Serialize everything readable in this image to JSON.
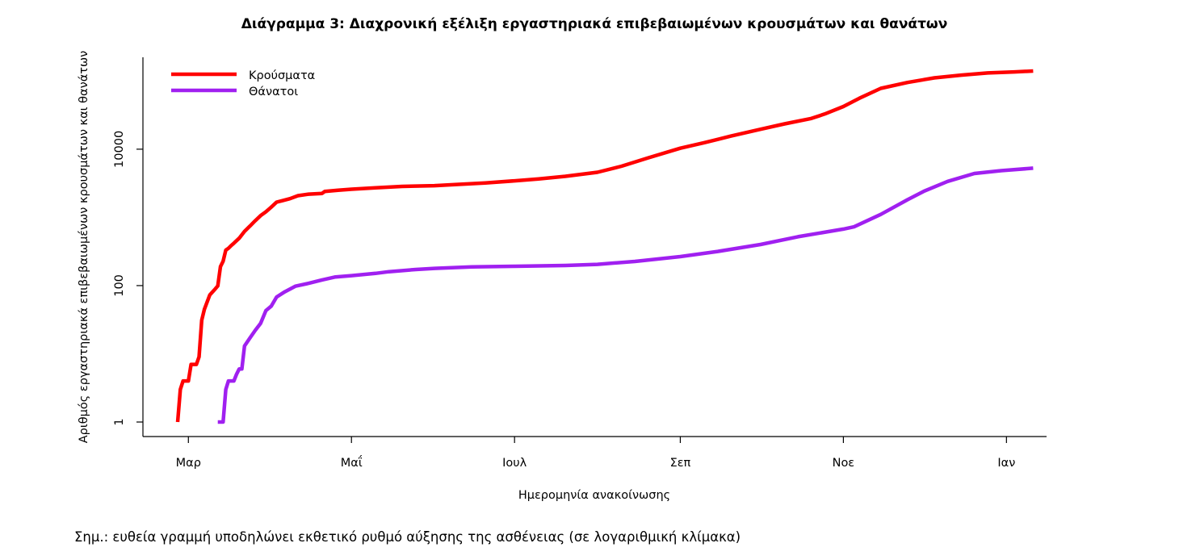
{
  "chart_data": {
    "type": "line",
    "title": "Διάγραμμα 3: Διαχρονική εξέλιξη εργαστηριακά επιβεβαιωμένων κρουσμάτων και θανάτων",
    "xlabel": "Ημερομηνία ανακοίνωσης",
    "ylabel": "Αριθμός εργαστηριακά επιβεβαιωμένων κρουσμάτων και θανάτων",
    "y_scale": "log",
    "ylim": [
      1,
      140000
    ],
    "y_ticks": [
      {
        "value": 1,
        "label": "1"
      },
      {
        "value": 100,
        "label": "100"
      },
      {
        "value": 10000,
        "label": "10000"
      }
    ],
    "x_ticks": [
      {
        "date": "2020-03-01",
        "label": "Μαρ"
      },
      {
        "date": "2020-05-01",
        "label": "Μαΐ"
      },
      {
        "date": "2020-07-01",
        "label": "Ιουλ"
      },
      {
        "date": "2020-09-01",
        "label": "Σεπ"
      },
      {
        "date": "2020-11-01",
        "label": "Νοε"
      },
      {
        "date": "2021-01-01",
        "label": "Ιαν"
      }
    ],
    "xlim": [
      "2020-02-13",
      "2021-01-16"
    ],
    "legend_position": "top-left",
    "grid": false,
    "series": [
      {
        "name": "Κρούσματα",
        "color": "#ff0000",
        "points": [
          [
            "2020-02-26",
            1
          ],
          [
            "2020-02-27",
            3
          ],
          [
            "2020-02-28",
            4
          ],
          [
            "2020-03-01",
            4
          ],
          [
            "2020-03-02",
            7
          ],
          [
            "2020-03-04",
            7
          ],
          [
            "2020-03-05",
            9
          ],
          [
            "2020-03-06",
            31
          ],
          [
            "2020-03-07",
            45
          ],
          [
            "2020-03-09",
            73
          ],
          [
            "2020-03-11",
            89
          ],
          [
            "2020-03-12",
            99
          ],
          [
            "2020-03-13",
            190
          ],
          [
            "2020-03-14",
            228
          ],
          [
            "2020-03-15",
            331
          ],
          [
            "2020-03-16",
            352
          ],
          [
            "2020-03-17",
            387
          ],
          [
            "2020-03-18",
            418
          ],
          [
            "2020-03-20",
            495
          ],
          [
            "2020-03-22",
            624
          ],
          [
            "2020-03-24",
            743
          ],
          [
            "2020-03-26",
            892
          ],
          [
            "2020-03-28",
            1061
          ],
          [
            "2020-03-30",
            1212
          ],
          [
            "2020-04-01",
            1415
          ],
          [
            "2020-04-03",
            1673
          ],
          [
            "2020-04-05",
            1755
          ],
          [
            "2020-04-08",
            1884
          ],
          [
            "2020-04-11",
            2081
          ],
          [
            "2020-04-15",
            2192
          ],
          [
            "2020-04-20",
            2245
          ],
          [
            "2020-04-21",
            2401
          ],
          [
            "2020-04-26",
            2506
          ],
          [
            "2020-05-01",
            2591
          ],
          [
            "2020-05-10",
            2710
          ],
          [
            "2020-05-20",
            2850
          ],
          [
            "2020-06-01",
            2918
          ],
          [
            "2020-06-10",
            3049
          ],
          [
            "2020-06-20",
            3203
          ],
          [
            "2020-07-01",
            3432
          ],
          [
            "2020-07-10",
            3672
          ],
          [
            "2020-07-20",
            4007
          ],
          [
            "2020-08-01",
            4587
          ],
          [
            "2020-08-10",
            5623
          ],
          [
            "2020-08-20",
            7472
          ],
          [
            "2020-09-01",
            10317
          ],
          [
            "2020-09-10",
            12452
          ],
          [
            "2020-09-20",
            15595
          ],
          [
            "2020-10-01",
            19613
          ],
          [
            "2020-10-10",
            23510
          ],
          [
            "2020-10-20",
            28216
          ],
          [
            "2020-10-25",
            32752
          ],
          [
            "2020-11-01",
            42195
          ],
          [
            "2020-11-07",
            55927
          ],
          [
            "2020-11-15",
            78000
          ],
          [
            "2020-11-25",
            95137
          ],
          [
            "2020-12-05",
            111000
          ],
          [
            "2020-12-15",
            122000
          ],
          [
            "2020-12-25",
            131000
          ],
          [
            "2021-01-04",
            136000
          ],
          [
            "2021-01-11",
            140000
          ]
        ]
      },
      {
        "name": "Θάνατοι",
        "color": "#a020f0",
        "points": [
          [
            "2020-03-12",
            1
          ],
          [
            "2020-03-14",
            1
          ],
          [
            "2020-03-15",
            3
          ],
          [
            "2020-03-16",
            4
          ],
          [
            "2020-03-18",
            4
          ],
          [
            "2020-03-19",
            5
          ],
          [
            "2020-03-20",
            6
          ],
          [
            "2020-03-21",
            6
          ],
          [
            "2020-03-22",
            13
          ],
          [
            "2020-03-24",
            17
          ],
          [
            "2020-03-26",
            22
          ],
          [
            "2020-03-28",
            28
          ],
          [
            "2020-03-30",
            43
          ],
          [
            "2020-04-01",
            50
          ],
          [
            "2020-04-03",
            68
          ],
          [
            "2020-04-06",
            81
          ],
          [
            "2020-04-10",
            98
          ],
          [
            "2020-04-15",
            108
          ],
          [
            "2020-04-20",
            121
          ],
          [
            "2020-04-25",
            134
          ],
          [
            "2020-05-01",
            140
          ],
          [
            "2020-05-10",
            151
          ],
          [
            "2020-05-15",
            160
          ],
          [
            "2020-05-25",
            172
          ],
          [
            "2020-06-01",
            179
          ],
          [
            "2020-06-15",
            188
          ],
          [
            "2020-07-01",
            192
          ],
          [
            "2020-07-20",
            197
          ],
          [
            "2020-08-01",
            205
          ],
          [
            "2020-08-15",
            226
          ],
          [
            "2020-09-01",
            266
          ],
          [
            "2020-09-15",
            317
          ],
          [
            "2020-10-01",
            401
          ],
          [
            "2020-10-15",
            520
          ],
          [
            "2020-11-01",
            673
          ],
          [
            "2020-11-05",
            727
          ],
          [
            "2020-11-15",
            1106
          ],
          [
            "2020-11-25",
            1815
          ],
          [
            "2020-12-01",
            2406
          ],
          [
            "2020-12-10",
            3370
          ],
          [
            "2020-12-20",
            4400
          ],
          [
            "2020-12-30",
            4838
          ],
          [
            "2021-01-11",
            5263
          ]
        ]
      }
    ],
    "note": "Σημ.: ευθεία γραμμή υποδηλώνει εκθετικό ρυθμό αύξησης της ασθένειας (σε λογαριθμική κλίμακα)"
  }
}
